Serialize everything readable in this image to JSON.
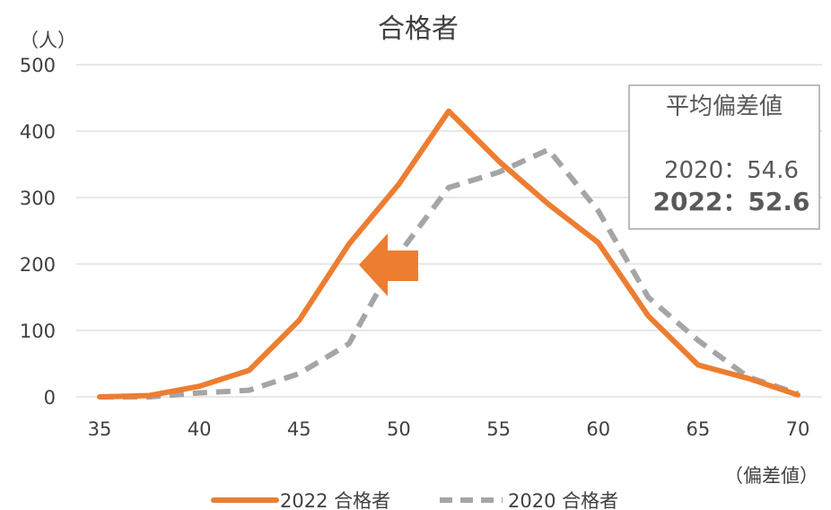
{
  "chart_data": {
    "type": "line",
    "title": "合格者",
    "ylabel": "（人）",
    "xlabel": "（偏差値）",
    "x": [
      35,
      37.5,
      40,
      42.5,
      45,
      47.5,
      50,
      52.5,
      55,
      57.5,
      60,
      62.5,
      65,
      67.5,
      70
    ],
    "xticks": [
      35,
      40,
      45,
      50,
      55,
      60,
      65,
      70
    ],
    "yticks": [
      0,
      100,
      200,
      300,
      400,
      500
    ],
    "xlim": [
      35,
      70
    ],
    "ylim": [
      0,
      500
    ],
    "grid": true,
    "legend_position": "bottom",
    "series": [
      {
        "name": "2022 合格者",
        "color": "#ED7D31",
        "style": "solid",
        "values": [
          0,
          2,
          16,
          40,
          115,
          230,
          320,
          430,
          355,
          290,
          232,
          122,
          48,
          28,
          3
        ]
      },
      {
        "name": "2020 合格者",
        "color": "#A5A5A5",
        "style": "dashed",
        "values": [
          0,
          0,
          6,
          10,
          35,
          80,
          215,
          315,
          338,
          372,
          280,
          150,
          85,
          30,
          5
        ]
      }
    ],
    "annotation": {
      "title": "平均偏差値",
      "line1": "2020：54.6",
      "line2": "2022：52.6",
      "arrow_color": "#ED7D31",
      "arrow_direction": "left"
    }
  }
}
